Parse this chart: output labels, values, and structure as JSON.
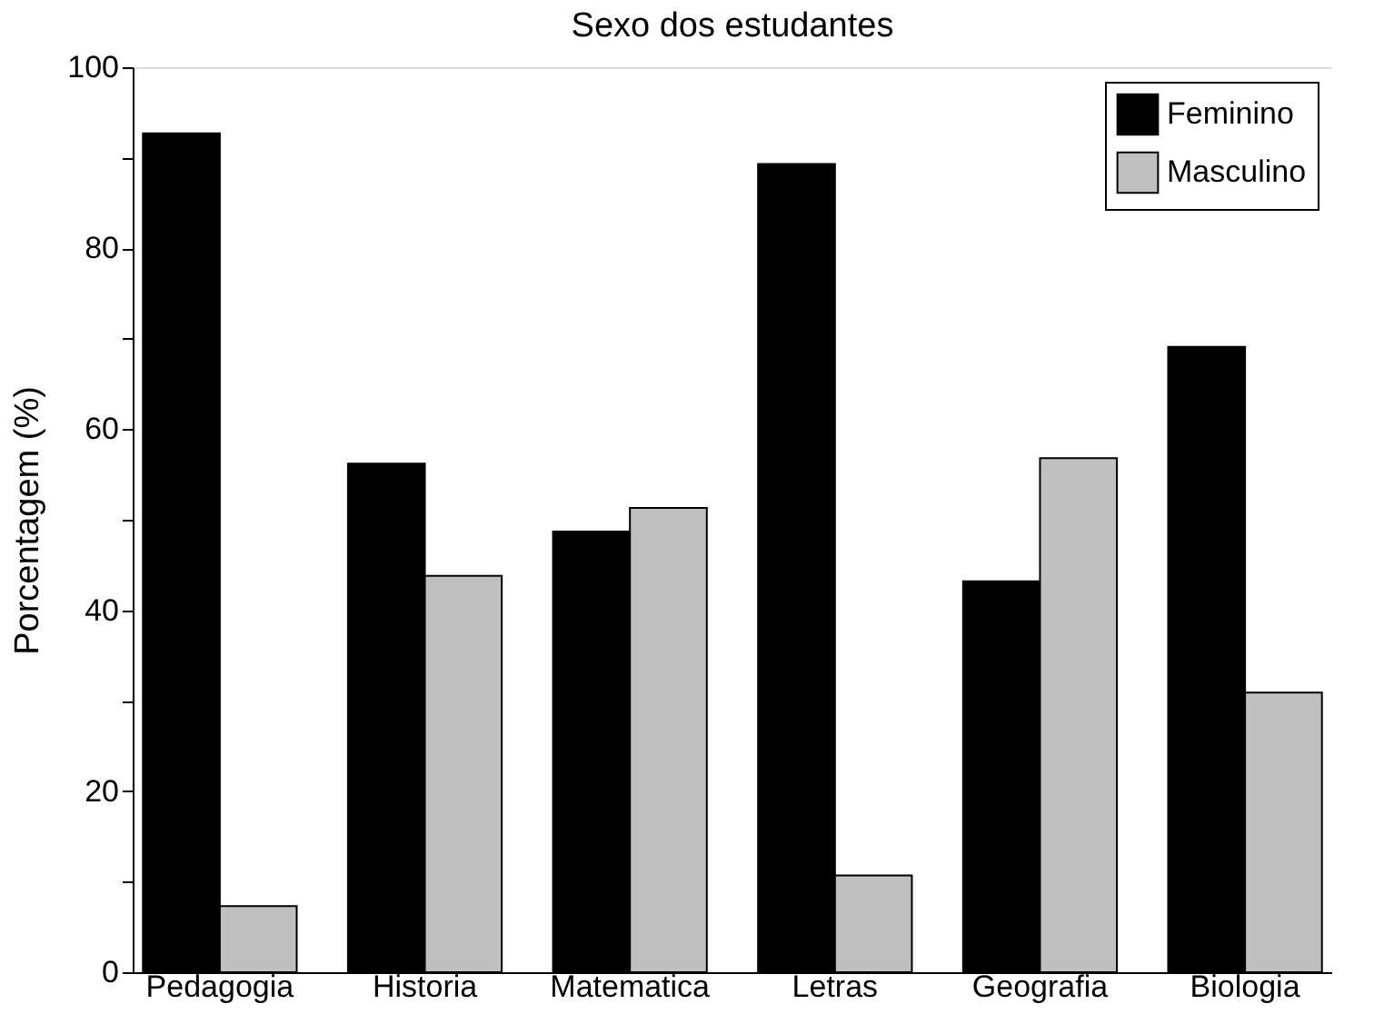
{
  "chart_data": {
    "type": "bar",
    "title": "Sexo dos estudantes",
    "ylabel": "Porcentagem (%)",
    "categories": [
      "Pedagogia",
      "Historia",
      "Matematica",
      "Letras",
      "Geografia",
      "Biologia"
    ],
    "series": [
      {
        "name": "Feminino",
        "color": "#000000",
        "values": [
          92.7,
          56.2,
          48.7,
          89.3,
          43.2,
          69.1
        ]
      },
      {
        "name": "Masculino",
        "color": "#c0c0c0",
        "values": [
          7.3,
          43.8,
          51.3,
          10.7,
          56.8,
          30.9
        ]
      }
    ],
    "ylim": [
      0,
      100
    ],
    "yticks": [
      0,
      {
        "value": 10,
        "label": null
      },
      20,
      {
        "value": 30,
        "label": null
      },
      40,
      {
        "value": 50,
        "label": null
      },
      60,
      {
        "value": 70,
        "label": null
      },
      80,
      {
        "value": 90,
        "label": null
      },
      100
    ],
    "grid": false,
    "legend": "top right"
  }
}
